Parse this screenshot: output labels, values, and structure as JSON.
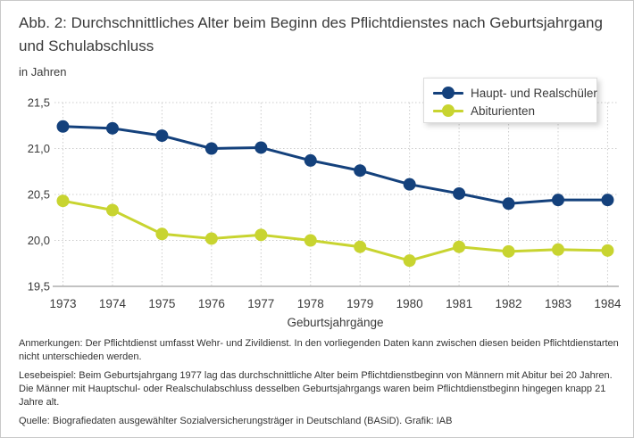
{
  "figure": {
    "title": "Abb. 2: Durchschnittliches Alter beim Beginn des Pflichtdienstes nach Geburtsjahrgang und Schulabschluss",
    "unit_label": "in Jahren"
  },
  "chart_data": {
    "type": "line",
    "categories": [
      "1973",
      "1974",
      "1975",
      "1976",
      "1977",
      "1978",
      "1979",
      "1980",
      "1981",
      "1982",
      "1983",
      "1984"
    ],
    "series": [
      {
        "name": "Haupt- und Realschüler",
        "color": "#14417c",
        "values": [
          21.24,
          21.22,
          21.14,
          21.0,
          21.01,
          20.87,
          20.76,
          20.61,
          20.51,
          20.4,
          20.44,
          20.44
        ]
      },
      {
        "name": "Abiturienten",
        "color": "#c8d430",
        "values": [
          20.43,
          20.33,
          20.07,
          20.02,
          20.06,
          20.0,
          19.93,
          19.78,
          19.93,
          19.88,
          19.9,
          19.89
        ]
      }
    ],
    "title": "Abb. 2: Durchschnittliches Alter beim Beginn des Pflichtdienstes nach Geburtsjahrgang und Schulabschluss",
    "xlabel": "Geburtsjahrgänge",
    "ylabel": "in Jahren",
    "ylim": [
      19.5,
      21.5
    ],
    "yticks": {
      "values": [
        21.5,
        21.0,
        20.5,
        20.0,
        19.5
      ],
      "labels": [
        "21,5",
        "21,0",
        "20,5",
        "20,0",
        "19,5"
      ]
    },
    "grid": true,
    "legend_position": "top-right"
  },
  "notes": {
    "anmerkungen": "Anmerkungen: Der Pflichtdienst umfasst Wehr- und Zivildienst. In den vorliegenden Daten kann zwischen diesen beiden Pflichtdienstarten nicht unterschieden werden.",
    "lesebeispiel": "Lesebeispiel: Beim Geburtsjahrgang 1977 lag das durchschnittliche Alter beim Pflichtdienstbeginn von Männern mit Abitur bei 20 Jahren. Die Männer mit Hauptschul- oder Realschulabschluss desselben Geburtsjahrgangs waren beim Pflichtdienstbeginn hingegen knapp 21 Jahre alt.",
    "quelle": "Quelle: Biografiedaten ausgewählter Sozialversicherungsträger in Deutschland (BASiD). Grafik: IAB"
  },
  "colors": {
    "series_blue": "#14417c",
    "series_yellow": "#c8d430",
    "gridline": "#cccccc",
    "axis_line": "#c2c2c2",
    "text": "#3a3a3a",
    "legend_border": "#dcdcdc"
  }
}
